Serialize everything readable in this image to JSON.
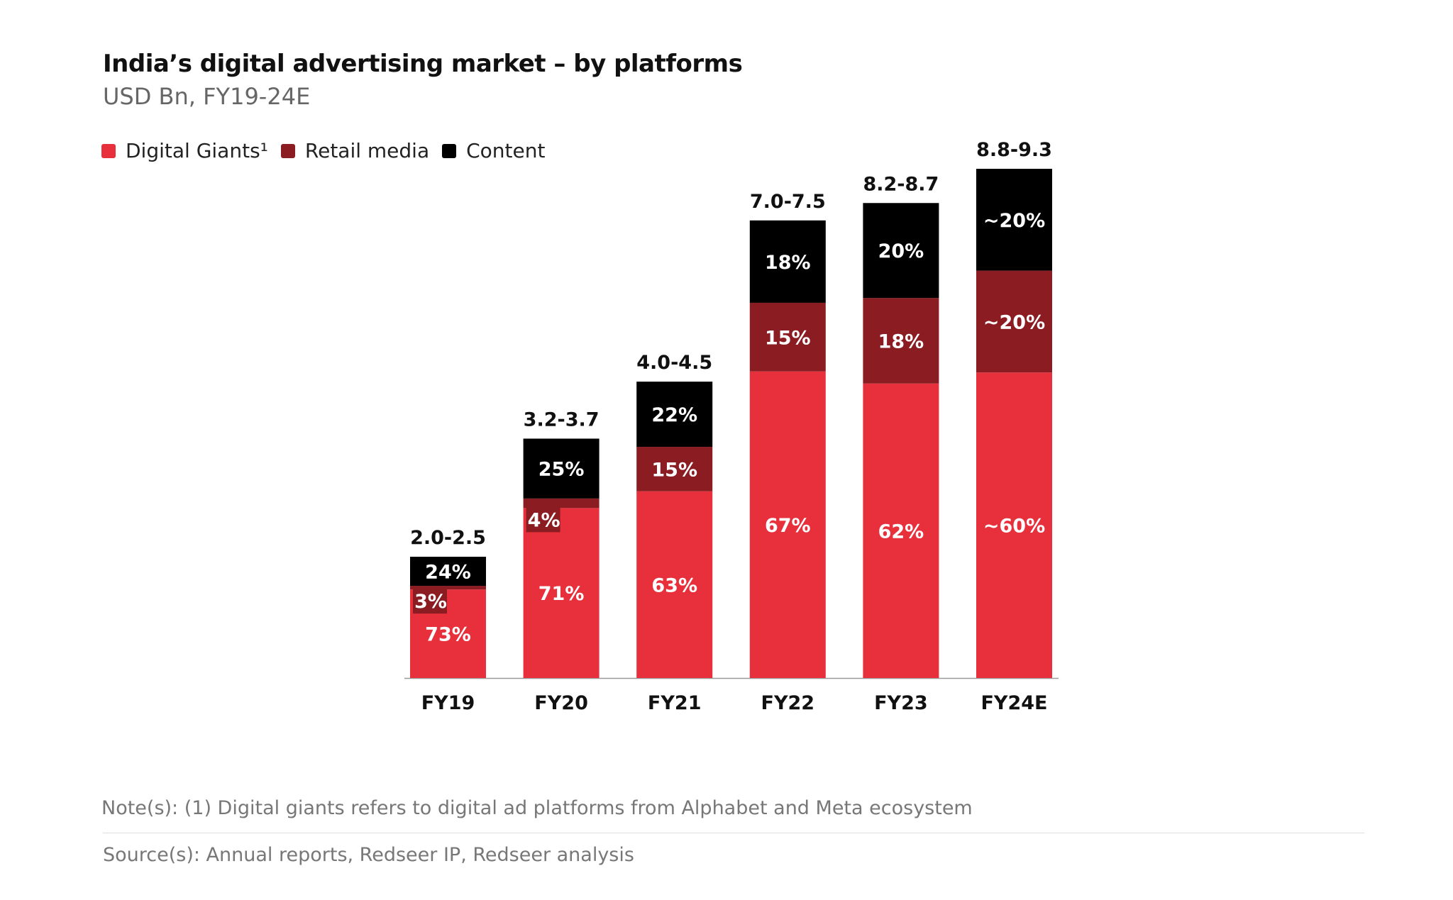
{
  "chart_data": {
    "type": "bar",
    "stacked": true,
    "title": "India’s digital advertising market – by platforms",
    "subtitle": "USD Bn, FY19-24E",
    "categories": [
      "FY19",
      "FY20",
      "FY21",
      "FY22",
      "FY23",
      "FY24E"
    ],
    "totals": [
      "2.0-2.5",
      "3.2-3.7",
      "4.0-4.5",
      "7.0-7.5",
      "8.2-8.7",
      "8.8-9.3"
    ],
    "series": [
      {
        "name": "Digital Giants¹",
        "color": "#e8303d",
        "values": [
          73,
          71,
          63,
          67,
          62,
          60
        ],
        "labels": [
          "73%",
          "71%",
          "63%",
          "67%",
          "62%",
          "~60%"
        ]
      },
      {
        "name": "Retail media",
        "color": "#8b1c22",
        "values": [
          3,
          4,
          15,
          15,
          18,
          20
        ],
        "labels": [
          "3%",
          "4%",
          "15%",
          "15%",
          "18%",
          "~20%"
        ]
      },
      {
        "name": "Content",
        "color": "#000000",
        "values": [
          24,
          25,
          22,
          18,
          20,
          20
        ],
        "labels": [
          "24%",
          "25%",
          "22%",
          "18%",
          "20%",
          "~20%"
        ]
      }
    ],
    "legend": "top-left",
    "grid": false
  },
  "footer": {
    "note": "Note(s): (1) Digital giants refers to digital ad platforms from Alphabet and Meta ecosystem",
    "source": "Source(s): Annual reports, Redseer IP, Redseer analysis"
  }
}
